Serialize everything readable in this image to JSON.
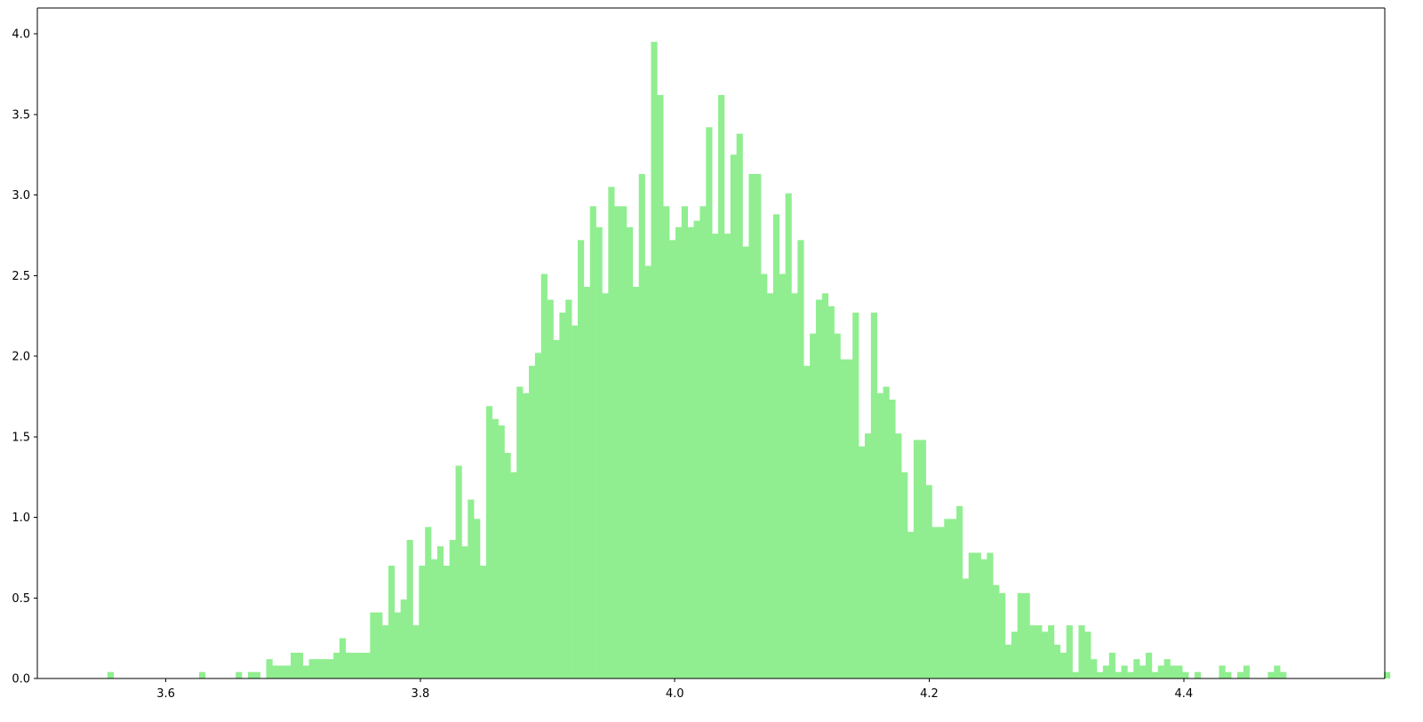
{
  "chart_data": {
    "type": "bar",
    "subtype": "histogram",
    "title": "",
    "xlabel": "",
    "ylabel": "",
    "bar_color": "#90ee90",
    "grid": false,
    "legend": "none",
    "xlim": [
      3.499,
      4.558
    ],
    "ylim": [
      0,
      4.16
    ],
    "xticks": [
      {
        "value": 3.6,
        "label": "3.6"
      },
      {
        "value": 3.8,
        "label": "3.8"
      },
      {
        "value": 4.0,
        "label": "4.0"
      },
      {
        "value": 4.2,
        "label": "4.2"
      },
      {
        "value": 4.4,
        "label": "4.4"
      }
    ],
    "yticks": [
      {
        "value": 0.0,
        "label": "0.0"
      },
      {
        "value": 0.5,
        "label": "0.5"
      },
      {
        "value": 1.0,
        "label": "1.0"
      },
      {
        "value": 1.5,
        "label": "1.5"
      },
      {
        "value": 2.0,
        "label": "2.0"
      },
      {
        "value": 2.5,
        "label": "2.5"
      },
      {
        "value": 3.0,
        "label": "3.0"
      },
      {
        "value": 3.5,
        "label": "3.5"
      },
      {
        "value": 4.0,
        "label": "4.0"
      }
    ],
    "bin_start": 3.5541,
    "bin_width": 0.0048,
    "values": [
      0.04,
      0,
      0,
      0,
      0,
      0,
      0,
      0,
      0,
      0,
      0,
      0,
      0,
      0,
      0,
      0.04,
      0,
      0,
      0,
      0,
      0,
      0.04,
      0,
      0.04,
      0.04,
      0,
      0.12,
      0.08,
      0.08,
      0.08,
      0.16,
      0.16,
      0.08,
      0.12,
      0.12,
      0.12,
      0.12,
      0.16,
      0.25,
      0.16,
      0.16,
      0.16,
      0.16,
      0.41,
      0.41,
      0.33,
      0.7,
      0.41,
      0.49,
      0.86,
      0.33,
      0.7,
      0.94,
      0.74,
      0.82,
      0.7,
      0.86,
      1.32,
      0.82,
      1.11,
      0.99,
      0.7,
      1.69,
      1.61,
      1.57,
      1.4,
      1.28,
      1.81,
      1.77,
      1.94,
      2.02,
      2.51,
      2.35,
      2.1,
      2.27,
      2.35,
      2.19,
      2.72,
      2.43,
      2.93,
      2.8,
      2.39,
      3.05,
      2.93,
      2.93,
      2.8,
      2.43,
      3.13,
      2.56,
      3.95,
      3.62,
      2.93,
      2.72,
      2.8,
      2.93,
      2.8,
      2.84,
      2.93,
      3.42,
      2.76,
      3.62,
      2.76,
      3.25,
      3.38,
      2.68,
      3.13,
      3.13,
      2.51,
      2.39,
      2.88,
      2.51,
      3.01,
      2.39,
      2.72,
      1.94,
      2.14,
      2.35,
      2.39,
      2.31,
      2.14,
      1.98,
      1.98,
      2.27,
      1.44,
      1.52,
      2.27,
      1.77,
      1.81,
      1.73,
      1.52,
      1.28,
      0.91,
      1.48,
      1.48,
      1.2,
      0.94,
      0.94,
      0.99,
      0.99,
      1.07,
      0.62,
      0.78,
      0.78,
      0.74,
      0.78,
      0.58,
      0.53,
      0.21,
      0.29,
      0.53,
      0.53,
      0.33,
      0.33,
      0.29,
      0.33,
      0.21,
      0.16,
      0.33,
      0.04,
      0.33,
      0.29,
      0.12,
      0.04,
      0.08,
      0.16,
      0.04,
      0.08,
      0.04,
      0.12,
      0.08,
      0.16,
      0.04,
      0.08,
      0.12,
      0.08,
      0.08,
      0.04,
      0,
      0.04,
      0,
      0,
      0,
      0.08,
      0.04,
      0,
      0.04,
      0.08,
      0,
      0,
      0,
      0.04,
      0.08,
      0.04,
      0,
      0,
      0,
      0,
      0,
      0,
      0,
      0,
      0,
      0,
      0,
      0,
      0,
      0,
      0,
      0,
      0.04
    ]
  }
}
